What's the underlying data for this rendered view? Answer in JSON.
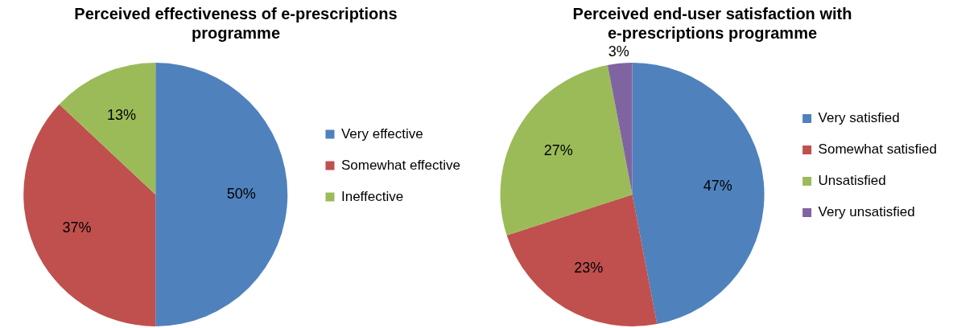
{
  "chart_data": [
    {
      "type": "pie",
      "title": "Perceived effectiveness of e-prescriptions programme",
      "categories": [
        "Very effective",
        "Somewhat effective",
        "Ineffective"
      ],
      "values": [
        50,
        37,
        13
      ],
      "colors": [
        "#4f81bd",
        "#c0504d",
        "#9bbb59"
      ],
      "value_labels": [
        "50%",
        "37%",
        "13%"
      ],
      "legend": "right"
    },
    {
      "type": "pie",
      "title": "Perceived end-user satisfaction with e-prescriptions programme",
      "categories": [
        "Very satisfied",
        "Somewhat satisfied",
        "Unsatisfied",
        "Very unsatisfied"
      ],
      "values": [
        47,
        23,
        27,
        3
      ],
      "colors": [
        "#4f81bd",
        "#c0504d",
        "#9bbb59",
        "#8064a2"
      ],
      "value_labels": [
        "47%",
        "23%",
        "27%",
        "3%"
      ],
      "legend": "right"
    }
  ]
}
